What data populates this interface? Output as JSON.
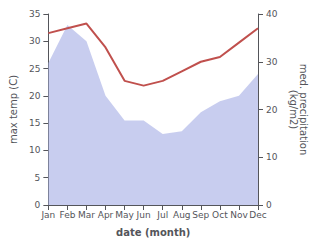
{
  "chart_data": {
    "type": "line",
    "categories": [
      "Jan",
      "Feb",
      "Mar",
      "Apr",
      "May",
      "Jun",
      "Jul",
      "Aug",
      "Sep",
      "Oct",
      "Nov",
      "Dec"
    ],
    "series": [
      {
        "type": "area",
        "color": "#b0b8e8",
        "values": [
          26,
          33,
          30,
          20,
          15.5,
          15.5,
          13,
          13.5,
          17,
          19,
          20,
          24
        ]
      },
      {
        "type": "line",
        "color": "#c0504d",
        "axis": "y2",
        "values": [
          36,
          37,
          38,
          33,
          26,
          25,
          26,
          28,
          30,
          31,
          34,
          37
        ]
      }
    ],
    "xlabel": "date (month)",
    "ylabel": "max temp (C)",
    "y2label": "med. precipitation\n(kg/m2)",
    "ylim": [
      0,
      35
    ],
    "yticks": [
      0,
      5,
      10,
      15,
      20,
      25,
      30,
      35
    ],
    "y2lim": [
      0,
      40
    ],
    "y2ticks": [
      0,
      10,
      20,
      30,
      40
    ],
    "grid": false
  }
}
